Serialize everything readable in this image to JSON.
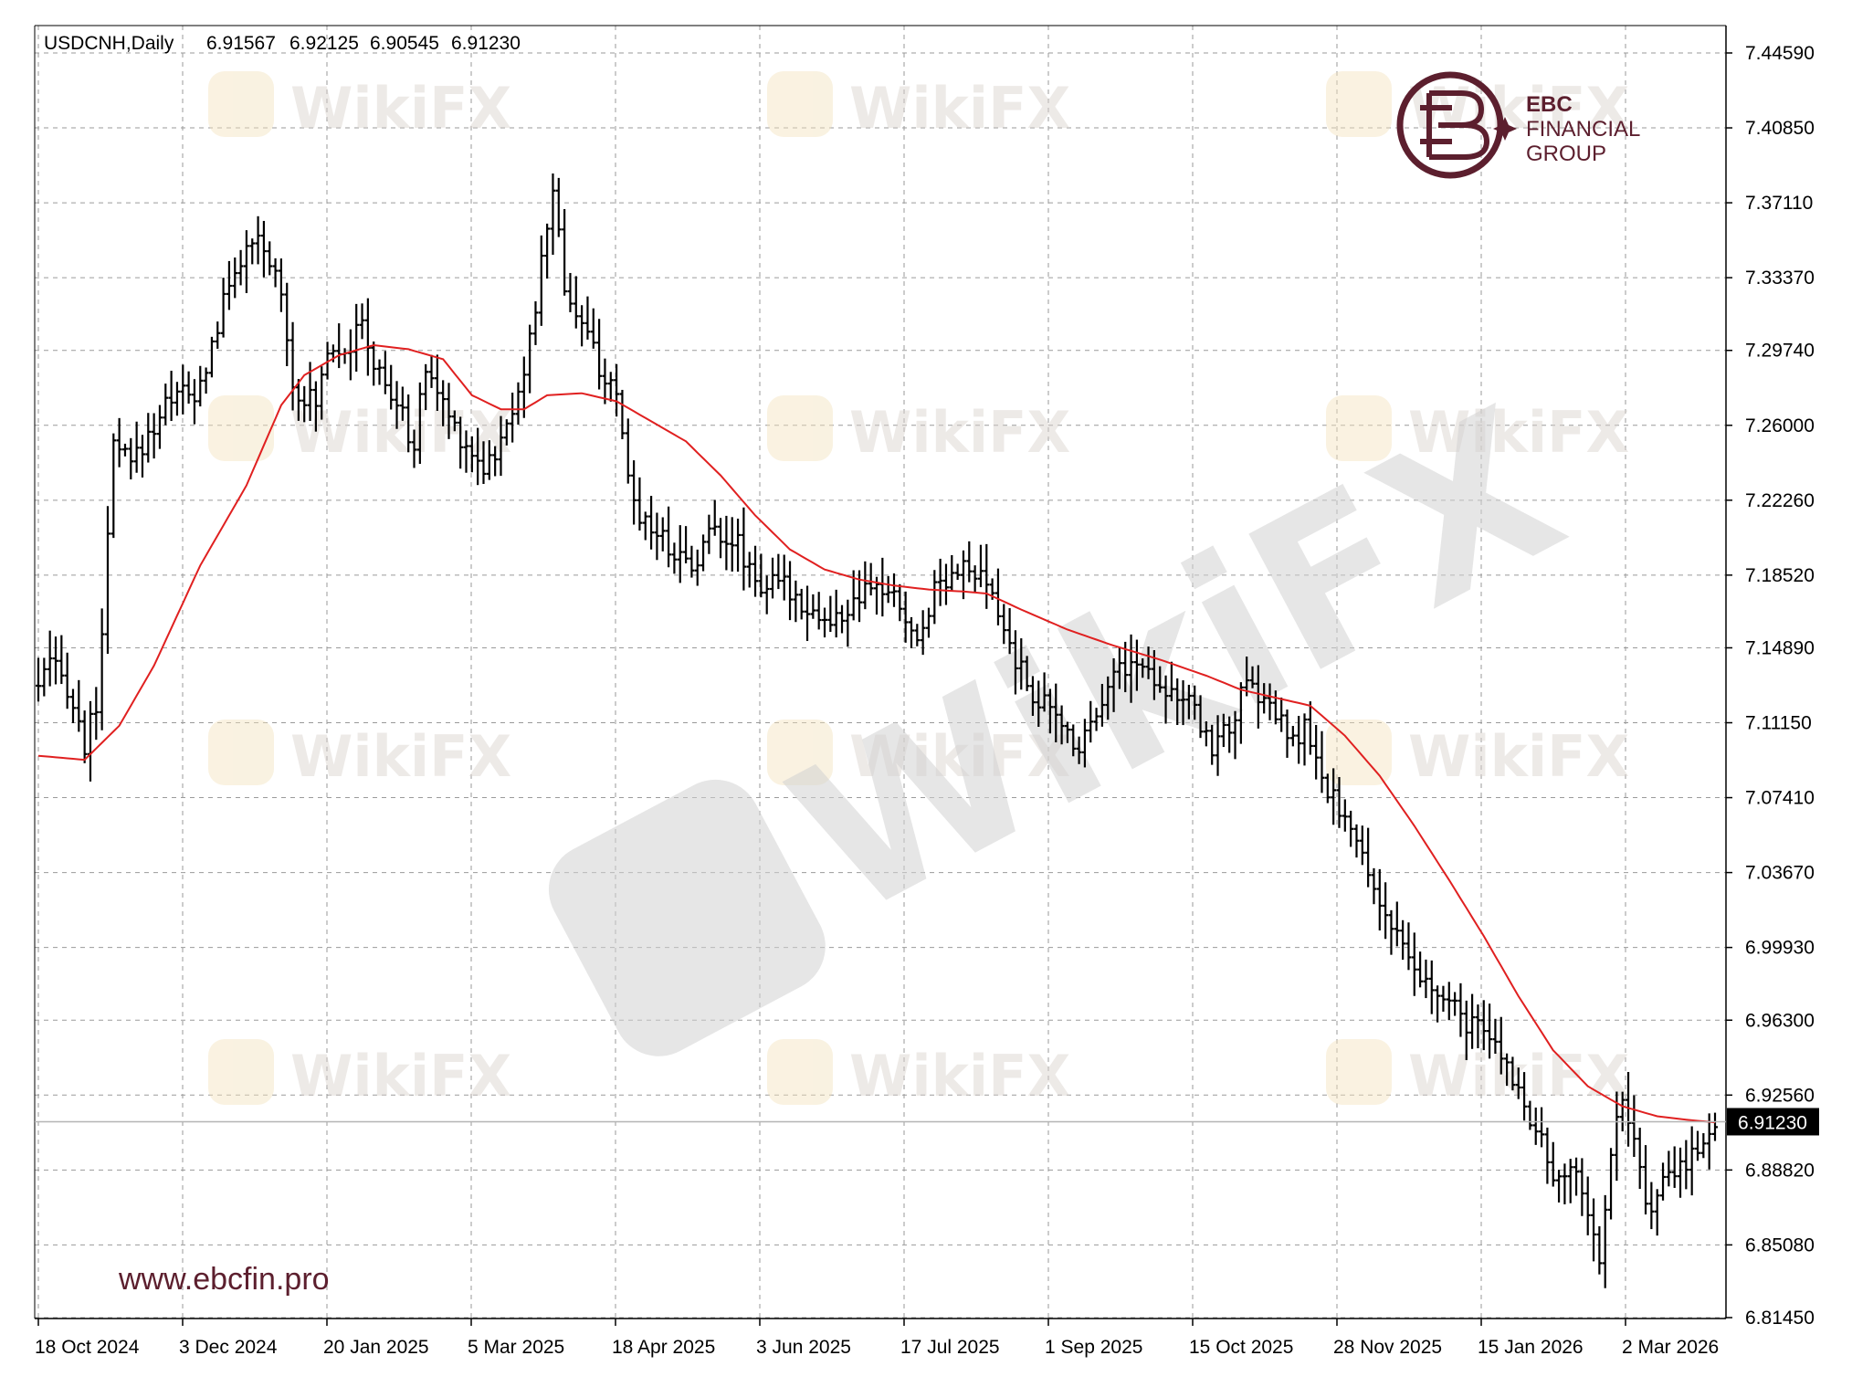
{
  "chart_data": {
    "type": "ohlc-bar",
    "symbol_label": "USDCNH,Daily",
    "ohlc_header": [
      "6.91567",
      "6.92125",
      "6.90545",
      "6.91230"
    ],
    "last_price_label": "6.91230",
    "last_price": 6.9123,
    "ylim": [
      6.8145,
      7.4459
    ],
    "y_ticks": [
      "7.44590",
      "7.40850",
      "7.37110",
      "7.33370",
      "7.29740",
      "7.26000",
      "7.22260",
      "7.18520",
      "7.14890",
      "7.11150",
      "7.07410",
      "7.03670",
      "6.99930",
      "6.96300",
      "6.92560",
      "6.88820",
      "6.85080",
      "6.81450"
    ],
    "x_ticks": [
      "18 Oct 2024",
      "3 Dec 2024",
      "20 Jan 2025",
      "5 Mar 2025",
      "18 Apr 2025",
      "3 Jun 2025",
      "17 Jul 2025",
      "1 Sep 2025",
      "15 Oct 2025",
      "28 Nov 2025",
      "15 Jan 2026",
      "2 Mar 2026"
    ],
    "grid": true,
    "price_anchors": [
      [
        0,
        7.13
      ],
      [
        2,
        7.14
      ],
      [
        5,
        7.13
      ],
      [
        8,
        7.1
      ],
      [
        10,
        7.12
      ],
      [
        12,
        7.2
      ],
      [
        13,
        7.25
      ],
      [
        16,
        7.24
      ],
      [
        20,
        7.26
      ],
      [
        24,
        7.28
      ],
      [
        27,
        7.27
      ],
      [
        30,
        7.3
      ],
      [
        34,
        7.34
      ],
      [
        38,
        7.35
      ],
      [
        42,
        7.33
      ],
      [
        44,
        7.28
      ],
      [
        48,
        7.27
      ],
      [
        50,
        7.3
      ],
      [
        54,
        7.3
      ],
      [
        56,
        7.31
      ],
      [
        58,
        7.29
      ],
      [
        62,
        7.27
      ],
      [
        65,
        7.25
      ],
      [
        67,
        7.29
      ],
      [
        70,
        7.27
      ],
      [
        74,
        7.25
      ],
      [
        77,
        7.24
      ],
      [
        80,
        7.25
      ],
      [
        83,
        7.28
      ],
      [
        85,
        7.3
      ],
      [
        87,
        7.34
      ],
      [
        89,
        7.38
      ],
      [
        91,
        7.33
      ],
      [
        94,
        7.31
      ],
      [
        97,
        7.29
      ],
      [
        100,
        7.27
      ],
      [
        103,
        7.22
      ],
      [
        106,
        7.21
      ],
      [
        109,
        7.2
      ],
      [
        113,
        7.19
      ],
      [
        117,
        7.21
      ],
      [
        121,
        7.2
      ],
      [
        125,
        7.18
      ],
      [
        129,
        7.18
      ],
      [
        133,
        7.17
      ],
      [
        137,
        7.16
      ],
      [
        141,
        7.17
      ],
      [
        145,
        7.18
      ],
      [
        149,
        7.17
      ],
      [
        152,
        7.15
      ],
      [
        155,
        7.18
      ],
      [
        159,
        7.19
      ],
      [
        164,
        7.18
      ],
      [
        168,
        7.15
      ],
      [
        171,
        7.13
      ],
      [
        174,
        7.12
      ],
      [
        177,
        7.11
      ],
      [
        180,
        7.1
      ],
      [
        183,
        7.12
      ],
      [
        187,
        7.14
      ],
      [
        191,
        7.14
      ],
      [
        195,
        7.13
      ],
      [
        199,
        7.12
      ],
      [
        203,
        7.1
      ],
      [
        206,
        7.11
      ],
      [
        209,
        7.13
      ],
      [
        213,
        7.12
      ],
      [
        217,
        7.1
      ],
      [
        219,
        7.11
      ],
      [
        222,
        7.08
      ],
      [
        225,
        7.07
      ],
      [
        228,
        7.05
      ],
      [
        231,
        7.03
      ],
      [
        234,
        7.01
      ],
      [
        237,
        6.99
      ],
      [
        240,
        6.98
      ],
      [
        244,
        6.97
      ],
      [
        248,
        6.96
      ],
      [
        252,
        6.95
      ],
      [
        256,
        6.93
      ],
      [
        260,
        6.9
      ],
      [
        263,
        6.88
      ],
      [
        266,
        6.89
      ],
      [
        268,
        6.87
      ],
      [
        270,
        6.84
      ],
      [
        272,
        6.9
      ],
      [
        274,
        6.92
      ],
      [
        276,
        6.9
      ],
      [
        278,
        6.87
      ],
      [
        281,
        6.88
      ],
      [
        284,
        6.89
      ],
      [
        287,
        6.9
      ],
      [
        290,
        6.91
      ]
    ],
    "moving_average": {
      "color": "#e02020",
      "anchors": [
        [
          0,
          7.095
        ],
        [
          8,
          7.093
        ],
        [
          14,
          7.11
        ],
        [
          20,
          7.14
        ],
        [
          28,
          7.19
        ],
        [
          36,
          7.23
        ],
        [
          42,
          7.27
        ],
        [
          46,
          7.285
        ],
        [
          52,
          7.295
        ],
        [
          58,
          7.3
        ],
        [
          64,
          7.298
        ],
        [
          70,
          7.293
        ],
        [
          75,
          7.275
        ],
        [
          80,
          7.268
        ],
        [
          84,
          7.268
        ],
        [
          88,
          7.275
        ],
        [
          94,
          7.276
        ],
        [
          100,
          7.272
        ],
        [
          106,
          7.262
        ],
        [
          112,
          7.252
        ],
        [
          118,
          7.235
        ],
        [
          124,
          7.215
        ],
        [
          130,
          7.198
        ],
        [
          136,
          7.188
        ],
        [
          142,
          7.183
        ],
        [
          148,
          7.18
        ],
        [
          154,
          7.178
        ],
        [
          160,
          7.177
        ],
        [
          164,
          7.176
        ],
        [
          170,
          7.168
        ],
        [
          178,
          7.158
        ],
        [
          186,
          7.15
        ],
        [
          194,
          7.143
        ],
        [
          202,
          7.135
        ],
        [
          208,
          7.128
        ],
        [
          214,
          7.124
        ],
        [
          220,
          7.12
        ],
        [
          226,
          7.105
        ],
        [
          232,
          7.085
        ],
        [
          238,
          7.06
        ],
        [
          244,
          7.033
        ],
        [
          250,
          7.005
        ],
        [
          256,
          6.975
        ],
        [
          262,
          6.948
        ],
        [
          268,
          6.93
        ],
        [
          274,
          6.92
        ],
        [
          280,
          6.915
        ],
        [
          286,
          6.913
        ],
        [
          290,
          6.912
        ]
      ]
    }
  },
  "branding": {
    "logo_company_line1": "EBC",
    "logo_company_line2": "FINANCIAL",
    "logo_company_line3": "GROUP",
    "website": "www.ebcfin.pro",
    "watermark_text": "WikiFX",
    "accent_color": "#5c1f2e"
  }
}
